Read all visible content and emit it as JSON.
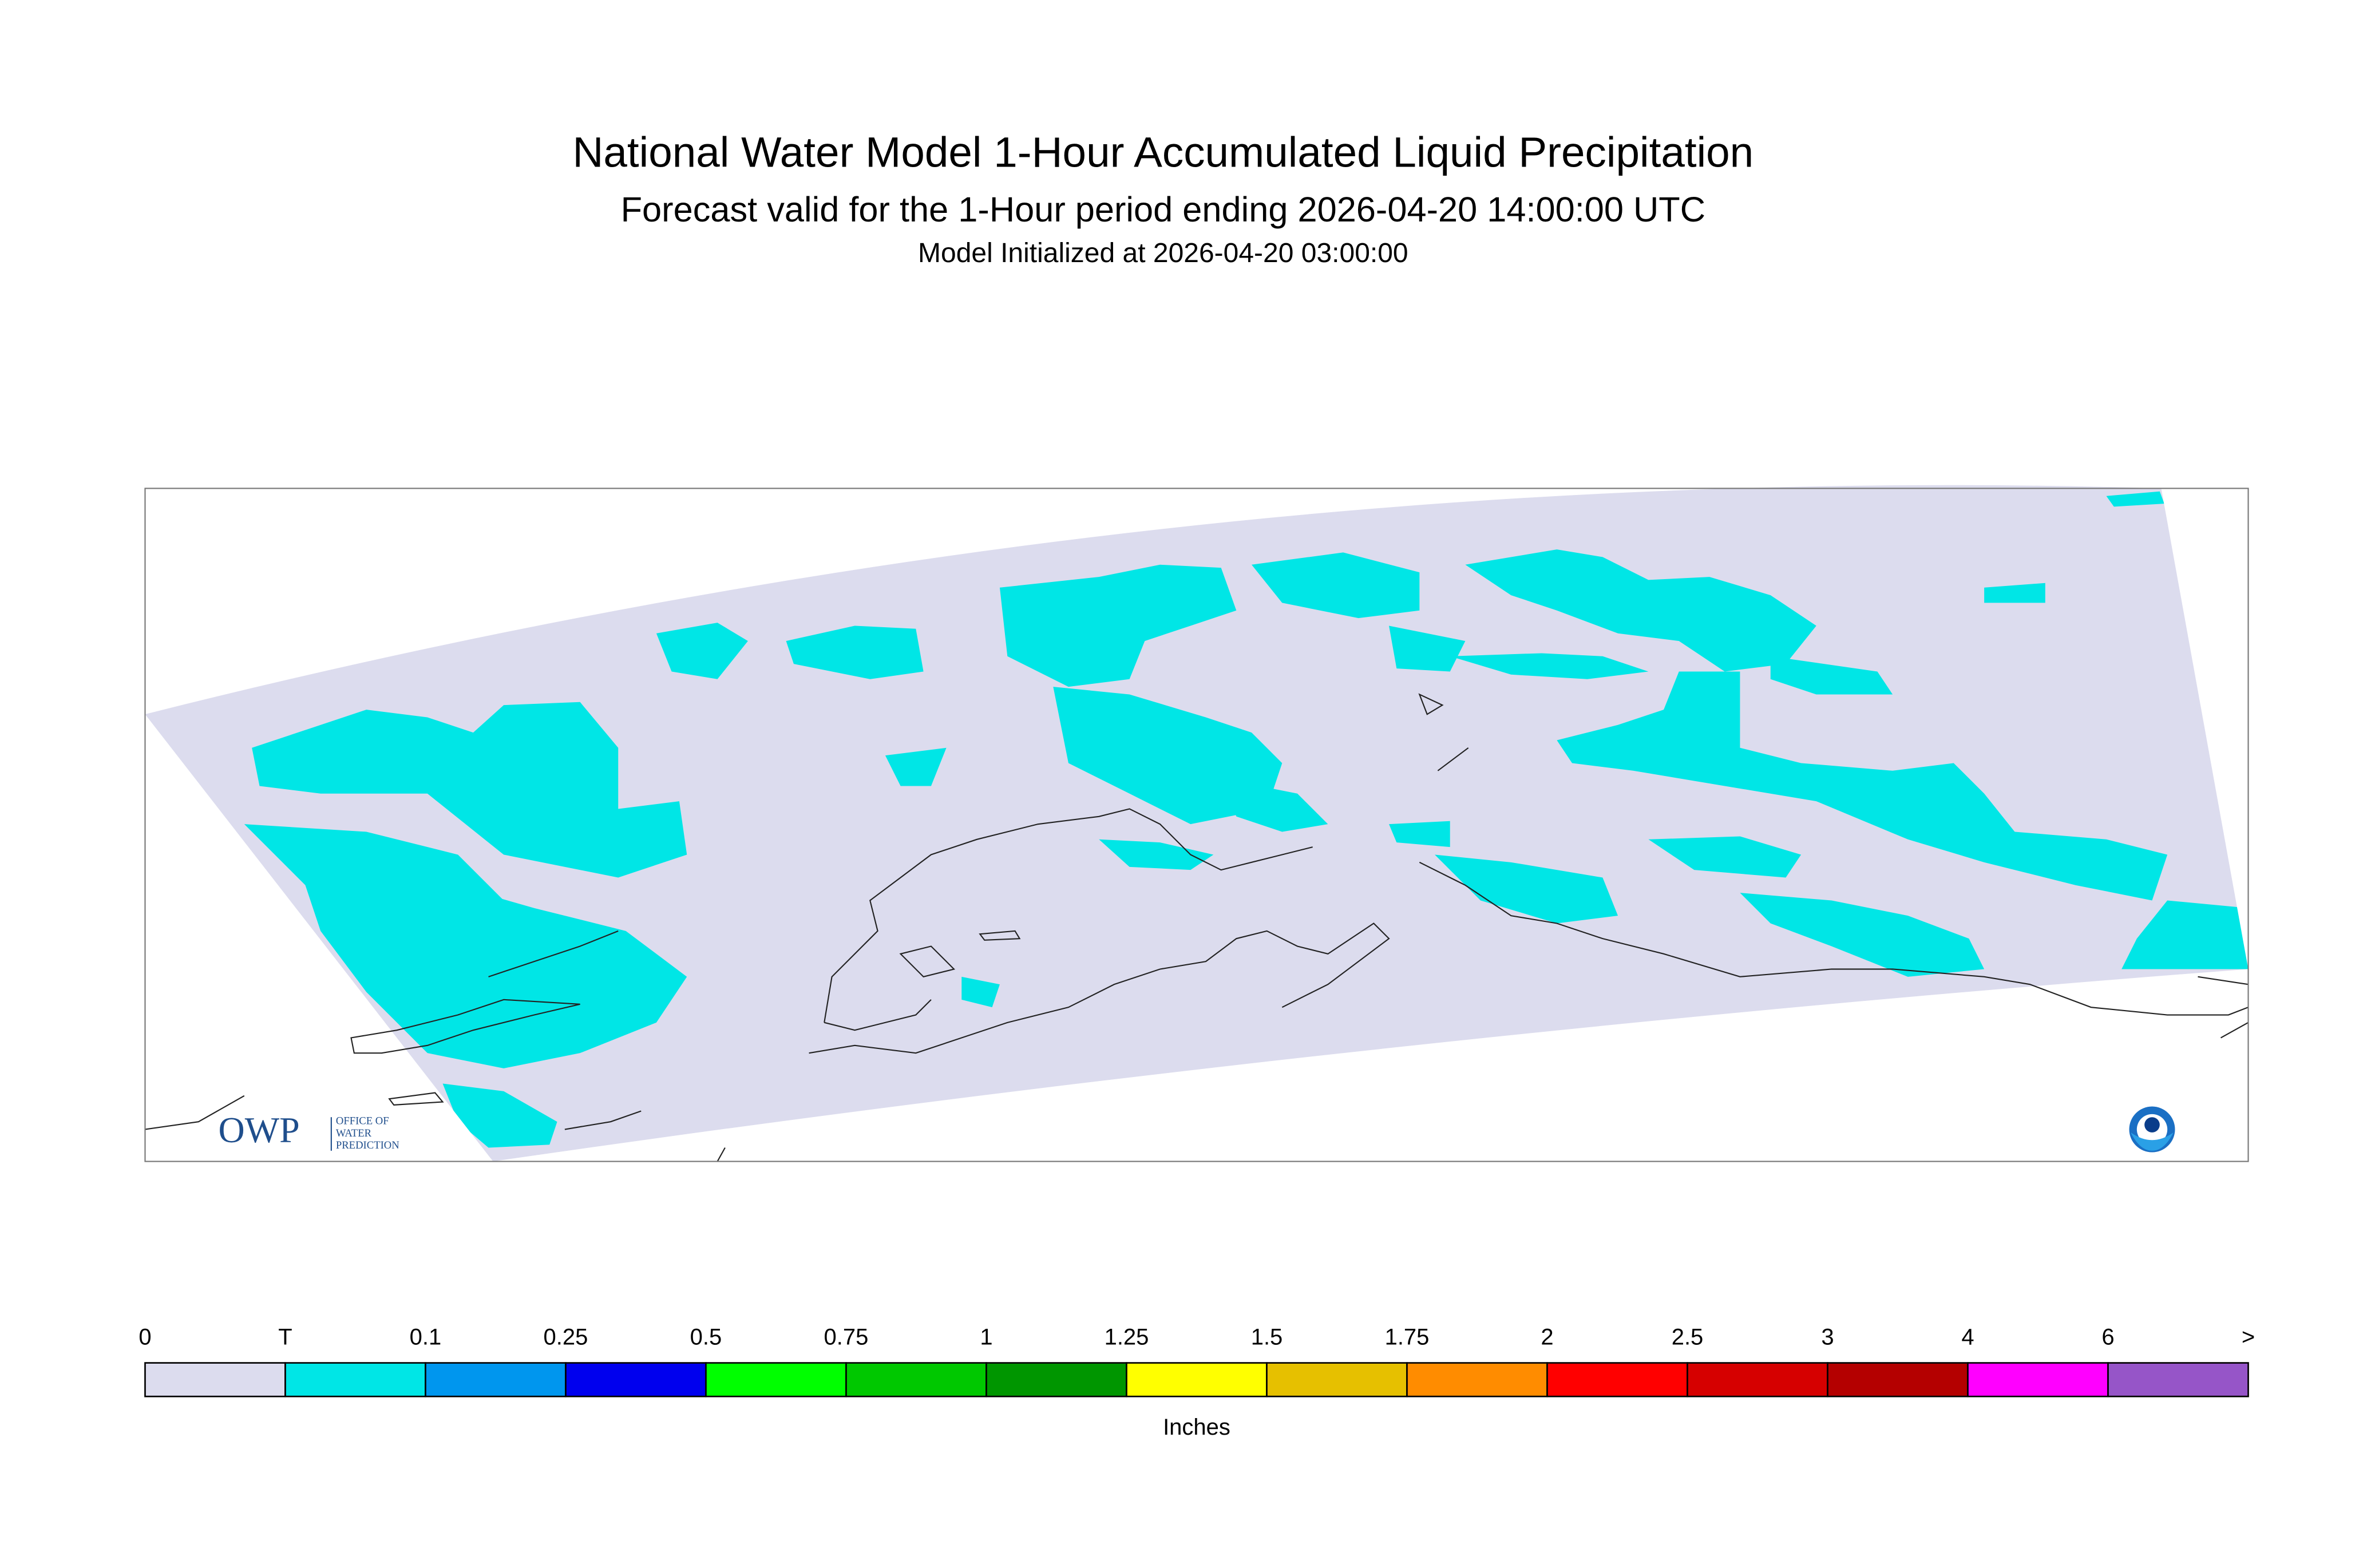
{
  "header": {
    "title": "National Water Model 1-Hour Accumulated Liquid Precipitation",
    "subtitle": "Forecast valid for the 1-Hour period ending 2026-04-20 14:00:00 UTC",
    "initialized": "Model Initialized at 2026-04-20 03:00:00"
  },
  "logo": {
    "mark": "OWP",
    "lines": [
      "OFFICE OF",
      "WATER",
      "PREDICTION"
    ]
  },
  "colorbar": {
    "labels": [
      "0",
      "T",
      "0.1",
      "0.25",
      "0.5",
      "0.75",
      "1",
      "1.25",
      "1.5",
      "1.75",
      "2",
      "2.5",
      "3",
      "4",
      "6",
      ">"
    ],
    "colors": [
      "#dcdcee",
      "#00e6e6",
      "#0096ee",
      "#0000ee",
      "#00ff00",
      "#00c800",
      "#009600",
      "#ffff00",
      "#e6c000",
      "#ff8c00",
      "#ff0000",
      "#d60000",
      "#b40000",
      "#ff00ff",
      "#9655c8"
    ],
    "unit": "Inches"
  }
}
